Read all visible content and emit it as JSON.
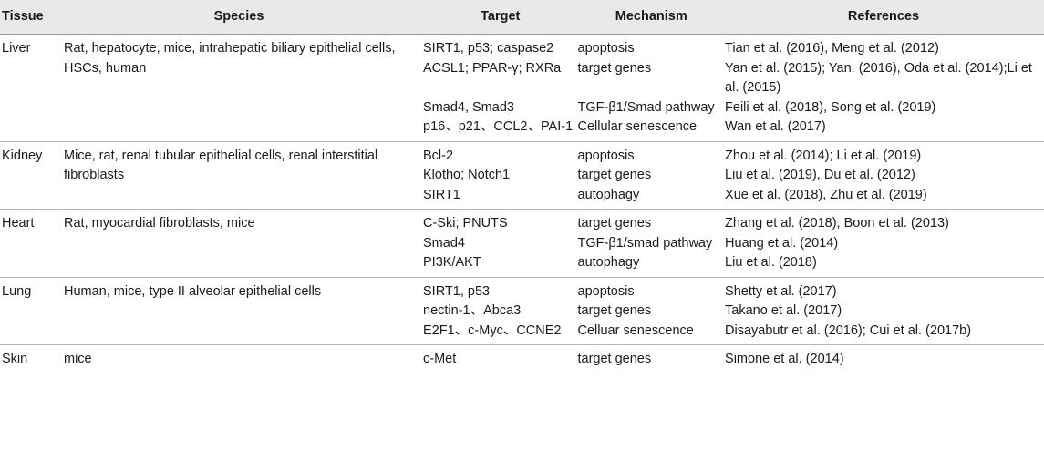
{
  "headers": {
    "tissue": "Tissue",
    "species": "Species",
    "target": "Target",
    "mechanism": "Mechanism",
    "references": "References"
  },
  "groups": [
    {
      "tissue": "Liver",
      "species": "Rat, hepatocyte, mice, intrahepatic biliary epithelial cells, HSCs, human",
      "rows": [
        {
          "target": "SIRT1, p53; caspase2",
          "mechanism": "apoptosis",
          "references": "Tian et al. (2016), Meng et al. (2012)"
        },
        {
          "target": "ACSL1; PPAR-γ; RXRa",
          "mechanism": "target genes",
          "references": "Yan et al. (2015); Yan. (2016), Oda et al. (2014);Li et al. (2015)"
        },
        {
          "target": "Smad4, Smad3",
          "mechanism": "TGF-β1/Smad pathway",
          "references": "Feili et al. (2018), Song et al. (2019)"
        },
        {
          "target": "p16、p21、CCL2、PAI-1",
          "mechanism": "Cellular senescence",
          "references": "Wan et al. (2017)"
        }
      ]
    },
    {
      "tissue": "Kidney",
      "species": "Mice, rat, renal tubular epithelial cells, renal interstitial fibroblasts",
      "rows": [
        {
          "target": "Bcl-2",
          "mechanism": "apoptosis",
          "references": "Zhou et al. (2014); Li et al. (2019)"
        },
        {
          "target": "Klotho; Notch1",
          "mechanism": "target genes",
          "references": "Liu et al. (2019), Du et al. (2012)"
        },
        {
          "target": "SIRT1",
          "mechanism": "autophagy",
          "references": "Xue et al. (2018), Zhu et al. (2019)"
        }
      ]
    },
    {
      "tissue": "Heart",
      "species": "Rat, myocardial fibroblasts, mice",
      "rows": [
        {
          "target": "C-Ski; PNUTS",
          "mechanism": "target genes",
          "references": "Zhang et al. (2018), Boon et al. (2013)"
        },
        {
          "target": "Smad4",
          "mechanism": "TGF-β1/smad pathway",
          "references": "Huang et al. (2014)"
        },
        {
          "target": "PI3K/AKT",
          "mechanism": "autophagy",
          "references": "Liu et al. (2018)"
        }
      ]
    },
    {
      "tissue": "Lung",
      "species": "Human, mice, type II alveolar epithelial cells",
      "rows": [
        {
          "target": "SIRT1, p53",
          "mechanism": "apoptosis",
          "references": "Shetty et al. (2017)"
        },
        {
          "target": "nectin-1、Abca3",
          "mechanism": "target genes",
          "references": "Takano et al. (2017)"
        },
        {
          "target": "E2F1、c-Myc、CCNE2",
          "mechanism": "Celluar senescence",
          "references": "Disayabutr et al. (2016); Cui et al. (2017b)"
        }
      ]
    },
    {
      "tissue": "Skin",
      "species": "mice",
      "rows": [
        {
          "target": "c-Met",
          "mechanism": "target genes",
          "references": "Simone et al. (2014)"
        }
      ]
    }
  ]
}
